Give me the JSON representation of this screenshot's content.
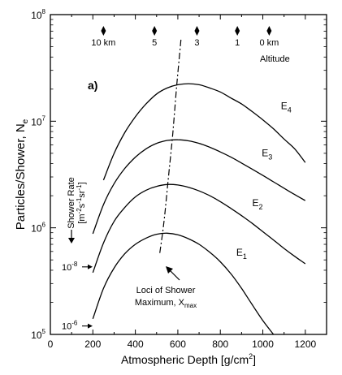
{
  "chart_data": {
    "type": "line",
    "panel_label": "a)",
    "xlabel": "Atmospheric Depth [g/cm",
    "xlabel_sup": "2",
    "xlabel_end": "]",
    "ylabel": "Particles/Shower, N",
    "ylabel_sub": "e",
    "xlim": [
      0,
      1300
    ],
    "ylim": [
      100000,
      100000000
    ],
    "y_scale": "log",
    "x_ticks": [
      0,
      200,
      400,
      600,
      800,
      1000,
      1200
    ],
    "x_tick_labels": [
      "0",
      "200",
      "400",
      "600",
      "800",
      "1000",
      "1200"
    ],
    "y_ticks": [
      {
        "value": 100000,
        "base": "10",
        "exp": "5"
      },
      {
        "value": 1000000,
        "base": "10",
        "exp": "6"
      },
      {
        "value": 10000000,
        "base": "10",
        "exp": "7"
      },
      {
        "value": 100000000,
        "base": "10",
        "exp": "8"
      }
    ],
    "series": [
      {
        "name": "E",
        "sub": "1",
        "x": [
          200,
          250,
          300,
          350,
          400,
          450,
          500,
          550,
          600,
          650,
          700,
          750,
          800,
          850,
          900,
          950,
          1000,
          1050
        ],
        "y": [
          140000,
          270000,
          420000,
          570000,
          700000,
          800000,
          870000,
          890000,
          860000,
          790000,
          700000,
          590000,
          480000,
          370000,
          270000,
          190000,
          135000,
          100000
        ],
        "label_at": [
          875,
          550000
        ]
      },
      {
        "name": "E",
        "sub": "2",
        "x": [
          200,
          250,
          300,
          350,
          400,
          450,
          500,
          550,
          600,
          650,
          700,
          750,
          800,
          850,
          900,
          950,
          1000,
          1050,
          1100,
          1150,
          1200
        ],
        "y": [
          380000,
          720000,
          1150000,
          1550000,
          1950000,
          2250000,
          2450000,
          2550000,
          2520000,
          2400000,
          2220000,
          2000000,
          1760000,
          1520000,
          1300000,
          1100000,
          920000,
          770000,
          640000,
          540000,
          460000
        ],
        "label_at": [
          950,
          1600000
        ]
      },
      {
        "name": "E",
        "sub": "3",
        "x": [
          200,
          250,
          300,
          350,
          400,
          450,
          500,
          550,
          600,
          650,
          700,
          750,
          800,
          850,
          900,
          950,
          1000,
          1050,
          1100,
          1150,
          1200
        ],
        "y": [
          880000,
          1650000,
          2600000,
          3600000,
          4600000,
          5500000,
          6200000,
          6600000,
          6700000,
          6550000,
          6200000,
          5700000,
          5150000,
          4600000,
          4050000,
          3550000,
          3100000,
          2700000,
          2350000,
          2050000,
          1800000
        ],
        "label_at": [
          995,
          4700000
        ]
      },
      {
        "name": "E",
        "sub": "4",
        "x": [
          250,
          300,
          350,
          400,
          450,
          500,
          550,
          600,
          650,
          700,
          750,
          800,
          850,
          900,
          950,
          1000,
          1050,
          1100,
          1150,
          1200
        ],
        "y": [
          2800000,
          5000000,
          7800000,
          11000000,
          14500000,
          18000000,
          20500000,
          22000000,
          22500000,
          22000000,
          20500000,
          18800000,
          16500000,
          14500000,
          12300000,
          10300000,
          8500000,
          6800000,
          5500000,
          4100000
        ],
        "label_at": [
          1085,
          13000000
        ]
      }
    ],
    "shower_max_locus": {
      "x": [
        515,
        535,
        555,
        575,
        595,
        615
      ],
      "y": [
        580000,
        1150000,
        2900000,
        7200000,
        22000000,
        59000000
      ]
    },
    "altitude_markers": [
      {
        "x": 250,
        "label": "10 km"
      },
      {
        "x": 490,
        "label": "5"
      },
      {
        "x": 690,
        "label": "3"
      },
      {
        "x": 880,
        "label": "1"
      },
      {
        "x": 1030,
        "label": "0 km"
      }
    ],
    "altitude_label": "Altitude",
    "shower_rate_text": "Shower Rate",
    "shower_rate_units": "[m",
    "shower_rate_units_sup1": "-2",
    "shower_rate_units_mid1": "s",
    "shower_rate_units_sup2": "-1",
    "shower_rate_units_mid2": "sr",
    "shower_rate_units_sup3": "-1",
    "shower_rate_units_end": "]",
    "rate_labels": [
      {
        "base": "10",
        "exp": "-8",
        "y": 430000
      },
      {
        "base": "10",
        "exp": "-6",
        "y": 120000
      }
    ],
    "loci_line1": "Loci of Shower",
    "loci_line2": "Maximum, X",
    "loci_sub": "max"
  }
}
